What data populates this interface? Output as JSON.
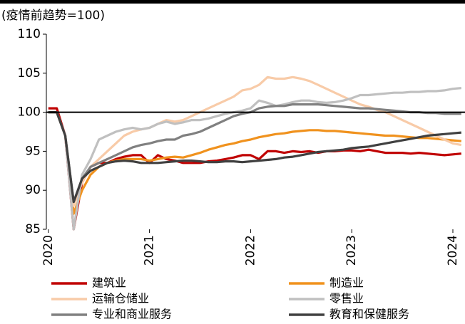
{
  "chart_data": {
    "type": "line",
    "ylabel": "(疫情前趋势=100)",
    "x": [
      2020,
      2020.083,
      2020.167,
      2020.25,
      2020.333,
      2020.417,
      2020.5,
      2020.583,
      2020.667,
      2020.75,
      2020.833,
      2020.917,
      2021,
      2021.083,
      2021.167,
      2021.25,
      2021.333,
      2021.417,
      2021.5,
      2021.583,
      2021.667,
      2021.75,
      2021.833,
      2021.917,
      2022,
      2022.083,
      2022.167,
      2022.25,
      2022.333,
      2022.417,
      2022.5,
      2022.583,
      2022.667,
      2022.75,
      2022.833,
      2022.917,
      2023,
      2023.083,
      2023.167,
      2023.25,
      2023.333,
      2023.417,
      2023.5,
      2023.583,
      2023.667,
      2023.75,
      2023.833,
      2023.917,
      2024,
      2024.083
    ],
    "xlim": [
      2019.98,
      2024.12
    ],
    "xticks": [
      2020,
      2021,
      2022,
      2023,
      2024
    ],
    "ylim": [
      85,
      110
    ],
    "yticks": [
      85,
      90,
      95,
      100,
      105,
      110
    ],
    "reference_line": 100,
    "series": [
      {
        "name": "建筑业",
        "color": "#c00000",
        "values": [
          100.5,
          100.5,
          97,
          85,
          91,
          93,
          93.5,
          93.5,
          94,
          94.3,
          94.5,
          94.5,
          93.5,
          94.5,
          94,
          93.8,
          93.5,
          93.5,
          93.5,
          93.7,
          93.8,
          94,
          94.2,
          94.5,
          94.5,
          94,
          95,
          95,
          94.8,
          95,
          94.9,
          95,
          94.8,
          95,
          95,
          95.1,
          95.1,
          95,
          95.2,
          95,
          94.8,
          94.8,
          94.8,
          94.7,
          94.8,
          94.7,
          94.6,
          94.5,
          94.6,
          94.7
        ]
      },
      {
        "name": "制造业",
        "color": "#f0921e",
        "values": [
          100,
          100,
          97,
          87,
          90,
          92,
          93,
          93.5,
          93.8,
          94,
          94,
          94,
          93.8,
          94,
          94.2,
          94.3,
          94.2,
          94.5,
          94.8,
          95.2,
          95.5,
          95.8,
          96,
          96.3,
          96.5,
          96.8,
          97,
          97.2,
          97.3,
          97.5,
          97.6,
          97.7,
          97.7,
          97.6,
          97.6,
          97.5,
          97.4,
          97.3,
          97.2,
          97.1,
          97,
          97,
          96.9,
          96.8,
          96.7,
          96.7,
          96.6,
          96.5,
          96.4,
          96.3
        ]
      },
      {
        "name": "运输仓储业",
        "color": "#f8cba8",
        "values": [
          100,
          100,
          97,
          88,
          91,
          93,
          94,
          95,
          96,
          97,
          97.5,
          97.8,
          98,
          98.5,
          99,
          98.8,
          99,
          99.5,
          100,
          100.5,
          101,
          101.5,
          102,
          102.8,
          103,
          103.5,
          104.5,
          104.3,
          104.3,
          104.5,
          104.3,
          104,
          103.5,
          103,
          102.5,
          102,
          101.5,
          101,
          100.7,
          100.3,
          100,
          99.5,
          99,
          98.5,
          98,
          97.5,
          97,
          96.5,
          96,
          95.8
        ]
      },
      {
        "name": "零售业",
        "color": "#c0c0c0",
        "values": [
          100,
          100,
          97,
          85,
          92,
          94,
          96.5,
          97,
          97.5,
          97.8,
          98,
          97.8,
          98,
          98.5,
          98.8,
          98.5,
          98.7,
          99,
          99,
          99.2,
          99.5,
          99.8,
          100,
          100.2,
          100.5,
          101.5,
          101.2,
          100.8,
          101,
          101.3,
          101.5,
          101.5,
          101.3,
          101.2,
          101.3,
          101.5,
          101.8,
          102.2,
          102.2,
          102.3,
          102.4,
          102.5,
          102.5,
          102.6,
          102.6,
          102.7,
          102.7,
          102.8,
          103,
          103.1
        ]
      },
      {
        "name": "专业和商业服务",
        "color": "#808080",
        "values": [
          100,
          100,
          97,
          88.5,
          91.5,
          93,
          93.5,
          94,
          94.5,
          95,
          95.5,
          95.8,
          96,
          96.3,
          96.5,
          96.5,
          97,
          97.2,
          97.5,
          98,
          98.5,
          99,
          99.5,
          99.8,
          100,
          100.5,
          100.7,
          100.8,
          100.8,
          101,
          101,
          101,
          101,
          100.9,
          100.8,
          100.7,
          100.6,
          100.5,
          100.5,
          100.4,
          100.3,
          100.2,
          100.1,
          100,
          100,
          99.9,
          99.9,
          99.8,
          99.8,
          99.8
        ]
      },
      {
        "name": "教育和保健服务",
        "color": "#404040",
        "values": [
          100,
          100,
          97,
          88.5,
          91.5,
          92.5,
          93,
          93.5,
          93.7,
          93.8,
          93.7,
          93.5,
          93.5,
          93.5,
          93.6,
          93.7,
          93.8,
          93.8,
          93.7,
          93.6,
          93.6,
          93.7,
          93.7,
          93.6,
          93.7,
          93.8,
          93.9,
          94,
          94.2,
          94.3,
          94.5,
          94.7,
          94.9,
          95,
          95.1,
          95.2,
          95.4,
          95.5,
          95.6,
          95.8,
          96,
          96.2,
          96.4,
          96.6,
          96.8,
          97,
          97.1,
          97.2,
          97.3,
          97.4
        ]
      }
    ]
  }
}
